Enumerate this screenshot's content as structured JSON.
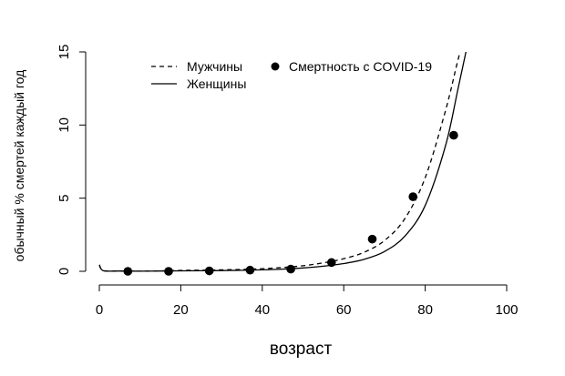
{
  "chart_data": {
    "type": "line",
    "xlabel": "возраст",
    "ylabel": "обычный % смертей каждый год",
    "xlim": [
      0,
      100
    ],
    "ylim": [
      0,
      15
    ],
    "x_ticks": [
      0,
      20,
      40,
      60,
      80,
      100
    ],
    "y_ticks": [
      0,
      5,
      10,
      15
    ],
    "grid": false,
    "legend_position": "top",
    "legend": {
      "men": "Мужчины",
      "women": "Женщины",
      "covid": "Смертность с COVID-19"
    },
    "series": [
      {
        "name": "Мужчины",
        "style": "dashed",
        "x": [
          0,
          1,
          5,
          10,
          15,
          20,
          25,
          30,
          35,
          40,
          45,
          50,
          55,
          60,
          65,
          70,
          75,
          80,
          85,
          88,
          90
        ],
        "values": [
          0.45,
          0.05,
          0.02,
          0.01,
          0.03,
          0.06,
          0.08,
          0.1,
          0.13,
          0.18,
          0.26,
          0.38,
          0.58,
          0.86,
          1.3,
          2.1,
          3.6,
          6.4,
          11.0,
          14.4,
          16.4
        ]
      },
      {
        "name": "Женщины",
        "style": "solid",
        "x": [
          0,
          1,
          5,
          10,
          15,
          20,
          25,
          30,
          35,
          40,
          45,
          50,
          55,
          60,
          65,
          70,
          75,
          80,
          85,
          88,
          90,
          91
        ],
        "values": [
          0.42,
          0.04,
          0.02,
          0.01,
          0.02,
          0.03,
          0.04,
          0.05,
          0.07,
          0.1,
          0.15,
          0.23,
          0.35,
          0.53,
          0.82,
          1.35,
          2.4,
          4.5,
          8.6,
          12.4,
          15.0,
          16.5
        ]
      },
      {
        "name": "Смертность с COVID-19",
        "style": "points",
        "x": [
          7,
          17,
          27,
          37,
          47,
          57,
          67,
          77,
          87
        ],
        "values": [
          0.0,
          0.0,
          0.03,
          0.08,
          0.15,
          0.6,
          2.2,
          5.1,
          9.3
        ]
      }
    ]
  }
}
